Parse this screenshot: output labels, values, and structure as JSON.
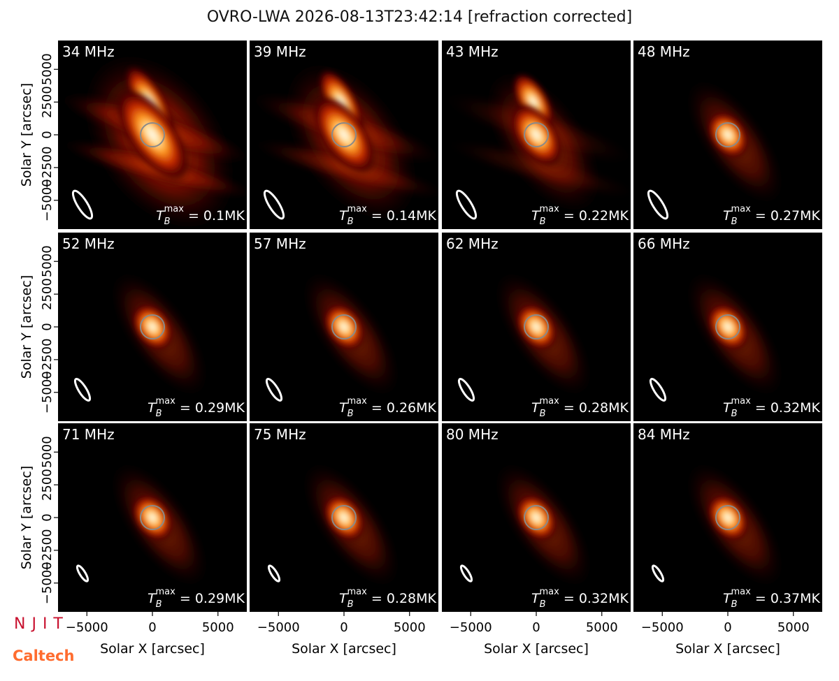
{
  "title": "OVRO-LWA 2026-08-13T23:42:14 [refraction corrected]",
  "xlabel": "Solar X [arcsec]",
  "ylabel": "Solar Y [arcsec]",
  "xlim": [
    -7200,
    7200
  ],
  "ylim": [
    -7200,
    7200
  ],
  "xticks": [
    {
      "value": -5000,
      "label": "−5000"
    },
    0,
    5000
  ],
  "yticks": [
    {
      "value": -5000,
      "label": "−5000"
    },
    {
      "value": -2500,
      "label": "−2500"
    },
    0,
    2500,
    5000
  ],
  "tb_symbol": {
    "base": "T",
    "sub": "B",
    "sup": "max",
    "eq": " = "
  },
  "logos": [
    "NJIT",
    "Caltech"
  ],
  "chart_data": [
    {
      "type": "image",
      "title": "34 MHz",
      "tb_max_label": "0.1MK"
    },
    {
      "type": "image",
      "title": "39 MHz",
      "tb_max_label": "0.14MK"
    },
    {
      "type": "image",
      "title": "43 MHz",
      "tb_max_label": "0.22MK"
    },
    {
      "type": "image",
      "title": "48 MHz",
      "tb_max_label": "0.27MK"
    },
    {
      "type": "image",
      "title": "52 MHz",
      "tb_max_label": "0.29MK"
    },
    {
      "type": "image",
      "title": "57 MHz",
      "tb_max_label": "0.26MK"
    },
    {
      "type": "image",
      "title": "62 MHz",
      "tb_max_label": "0.28MK"
    },
    {
      "type": "image",
      "title": "66 MHz",
      "tb_max_label": "0.32MK"
    },
    {
      "type": "image",
      "title": "71 MHz",
      "tb_max_label": "0.29MK"
    },
    {
      "type": "image",
      "title": "75 MHz",
      "tb_max_label": "0.28MK"
    },
    {
      "type": "image",
      "title": "80 MHz",
      "tb_max_label": "0.32MK"
    },
    {
      "type": "image",
      "title": "84 MHz",
      "tb_max_label": "0.37MK"
    }
  ]
}
